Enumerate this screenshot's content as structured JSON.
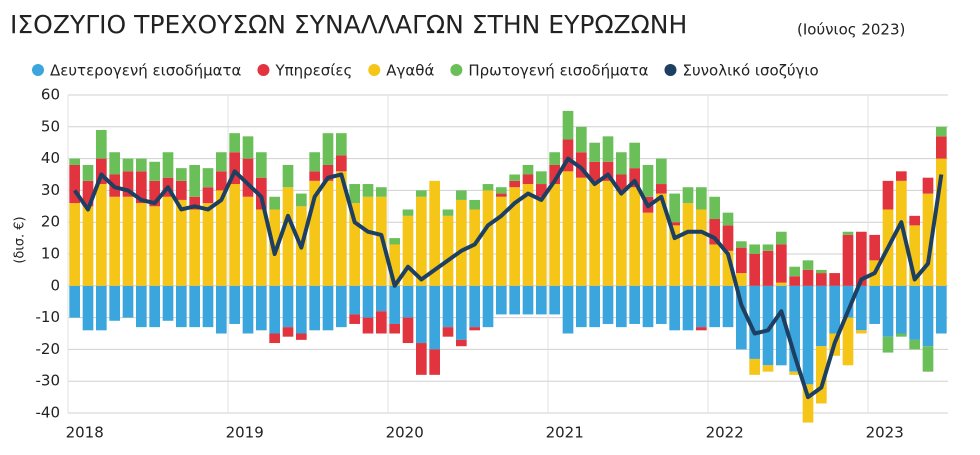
{
  "chart_data": {
    "type": "bar",
    "stacked": true,
    "title": "ΙΣΟΖΥΓΙΟ ΤΡΕΧΟΥΣΩΝ ΣΥΝΑΛΛΑΓΩΝ ΣΤΗΝ ΕΥΡΩΖΩΝΗ",
    "subtitle": "(Ιούνιος 2023)",
    "y_label": "(δισ. €)",
    "categories": [
      "2018",
      null,
      null,
      null,
      null,
      null,
      null,
      null,
      null,
      null,
      null,
      null,
      "2019",
      null,
      null,
      null,
      null,
      null,
      null,
      null,
      null,
      null,
      null,
      null,
      "2020",
      null,
      null,
      null,
      null,
      null,
      null,
      null,
      null,
      null,
      null,
      null,
      "2021",
      null,
      null,
      null,
      null,
      null,
      null,
      null,
      null,
      null,
      null,
      null,
      "2022",
      null,
      null,
      null,
      null,
      null,
      null,
      null,
      null,
      null,
      null,
      null,
      "2023",
      null,
      null,
      null,
      null,
      null
    ],
    "ylim": [
      -40,
      60
    ],
    "yticks": [
      -40,
      -30,
      -20,
      -10,
      0,
      10,
      20,
      30,
      40,
      50,
      60
    ],
    "grid": true,
    "legend": "top",
    "series": [
      {
        "name": "Δευτερογενή εισοδήματα",
        "color": "#3aa6dd",
        "values": [
          -10,
          -14,
          -14,
          -11,
          -10,
          -13,
          -13,
          -11,
          -13,
          -13,
          -13,
          -15,
          -12,
          -15,
          -14,
          -15,
          -13,
          -15,
          -14,
          -14,
          -13,
          -9,
          -10,
          -8,
          -12,
          -10,
          -18,
          -20,
          -13,
          -17,
          -13,
          -13,
          -9,
          -9,
          -9,
          -9,
          -9,
          -15,
          -13,
          -13,
          -12,
          -13,
          -12,
          -13,
          -12,
          -14,
          -14,
          -13,
          -13,
          -13,
          -20,
          -23,
          -25,
          -25,
          -27,
          -31,
          -19,
          -15,
          -10,
          -14,
          -12,
          -16,
          -15,
          -17,
          -19,
          -15
        ]
      },
      {
        "name": "Υπηρεσίες",
        "color": "#e2343f",
        "values": [
          12,
          8,
          8,
          7,
          8,
          10,
          8,
          6,
          6,
          4,
          5,
          6,
          10,
          12,
          10,
          -3,
          -3,
          -2,
          3,
          5,
          5,
          -3,
          -5,
          -7,
          -3,
          -8,
          -10,
          -8,
          -3,
          -2,
          -1,
          0,
          1,
          2,
          3,
          4,
          6,
          10,
          8,
          6,
          6,
          5,
          6,
          5,
          3,
          1,
          0,
          -1,
          8,
          8,
          8,
          10,
          11,
          12,
          3,
          5,
          4,
          4,
          16,
          17,
          8,
          9,
          3,
          3,
          5,
          7
        ]
      },
      {
        "name": "Αγαθά",
        "color": "#f5c518",
        "values": [
          26,
          25,
          32,
          28,
          28,
          26,
          25,
          28,
          27,
          24,
          26,
          30,
          32,
          28,
          24,
          24,
          31,
          25,
          33,
          33,
          36,
          26,
          28,
          28,
          13,
          22,
          28,
          33,
          22,
          27,
          24,
          30,
          28,
          31,
          32,
          28,
          32,
          36,
          34,
          33,
          33,
          30,
          31,
          23,
          29,
          19,
          26,
          24,
          13,
          11,
          4,
          -5,
          -2,
          1,
          -1,
          -12,
          -18,
          -7,
          -15,
          -1,
          8,
          24,
          33,
          19,
          29,
          40
        ]
      },
      {
        "name": "Πρωτογενή εισοδήματα",
        "color": "#6bbf59",
        "values": [
          2,
          5,
          9,
          7,
          4,
          4,
          6,
          8,
          4,
          10,
          6,
          6,
          6,
          7,
          8,
          4,
          7,
          4,
          6,
          10,
          7,
          6,
          4,
          3,
          2,
          2,
          2,
          0,
          2,
          3,
          3,
          2,
          2,
          2,
          3,
          4,
          4,
          9,
          8,
          6,
          8,
          7,
          8,
          10,
          8,
          9,
          5,
          7,
          7,
          4,
          2,
          3,
          2,
          4,
          3,
          3,
          1,
          0,
          1,
          0,
          0,
          -5,
          -1,
          -3,
          -8,
          3
        ]
      },
      {
        "name": "Συνολικό ισοζύγιο",
        "color": "#1d3f62",
        "type": "line",
        "values": [
          30,
          24,
          35,
          31,
          30,
          27,
          26,
          31,
          24,
          25,
          24,
          27,
          36,
          32,
          28,
          10,
          22,
          12,
          28,
          34,
          35,
          20,
          17,
          16,
          0,
          6,
          2,
          5,
          8,
          11,
          13,
          19,
          22,
          26,
          29,
          27,
          33,
          40,
          37,
          32,
          35,
          29,
          33,
          25,
          28,
          15,
          17,
          17,
          15,
          10,
          -6,
          -15,
          -14,
          -8,
          -22,
          -35,
          -32,
          -18,
          -8,
          2,
          4,
          12,
          20,
          2,
          7,
          35
        ]
      }
    ]
  }
}
